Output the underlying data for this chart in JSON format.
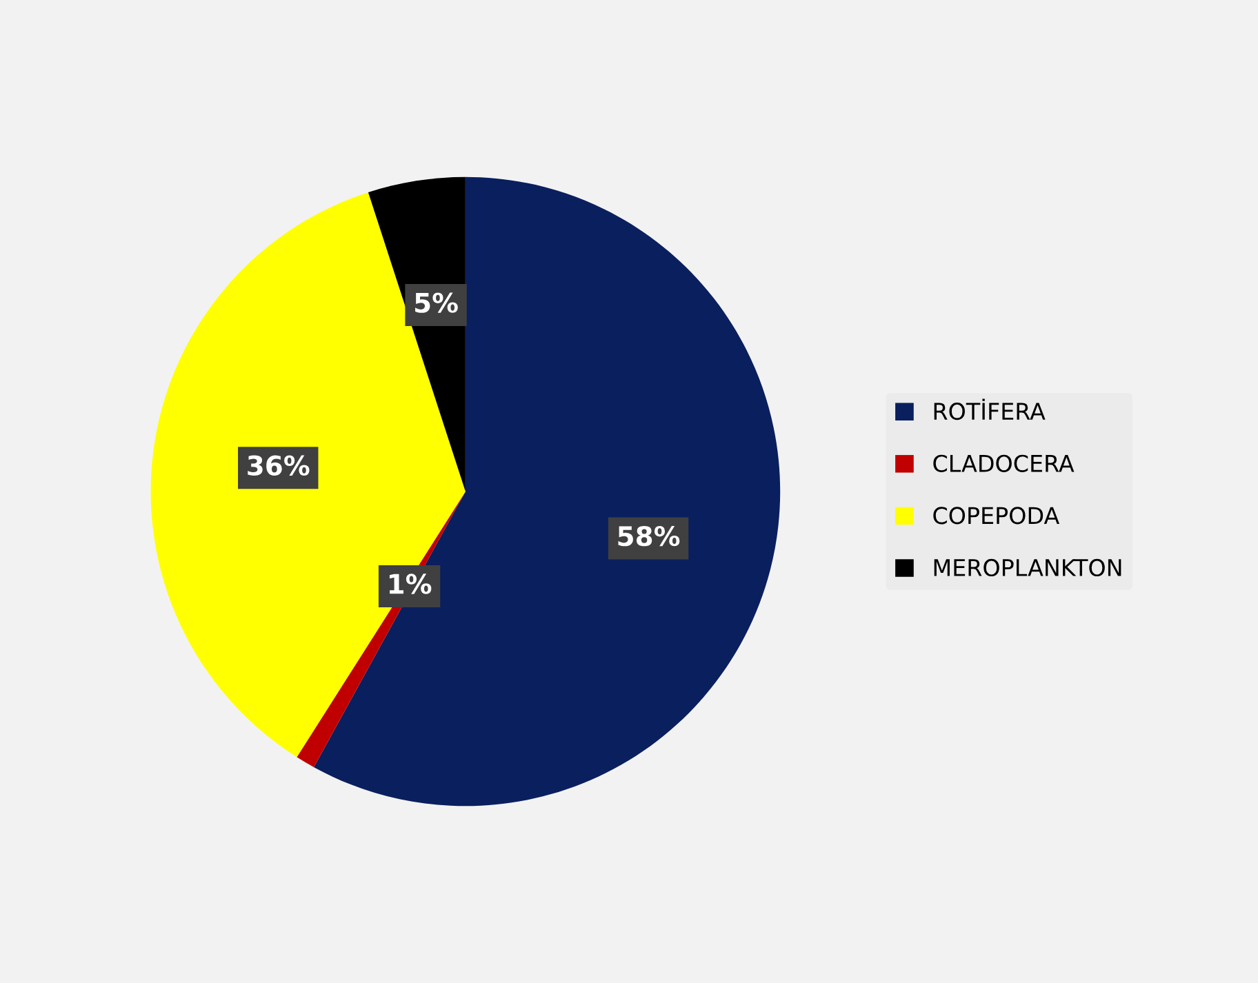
{
  "chart_data": {
    "type": "pie",
    "categories": [
      "ROTİFERA",
      "CLADOCERA",
      "COPEPODA",
      "MEROPLANKTON"
    ],
    "values": [
      58,
      1,
      36,
      5
    ],
    "colors": [
      "#0a1f5e",
      "#c00000",
      "#ffff00",
      "#000000"
    ],
    "value_labels": [
      "58%",
      "1%",
      "36%",
      "5%"
    ],
    "legend": "right"
  }
}
